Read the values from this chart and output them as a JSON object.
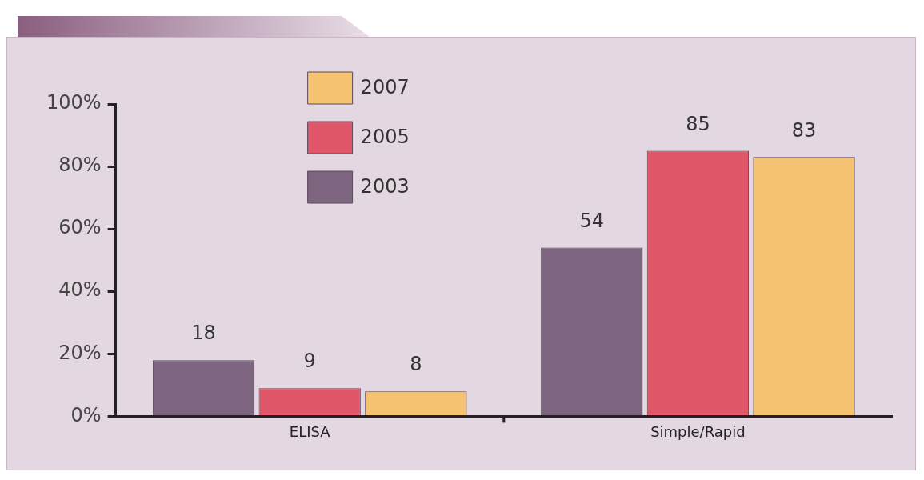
{
  "chart_data": {
    "type": "bar",
    "categories": [
      "ELISA",
      "Simple/Rapid"
    ],
    "series": [
      {
        "name": "2003",
        "color": "#7d6580",
        "values": [
          18,
          54
        ]
      },
      {
        "name": "2005",
        "color": "#e0576a",
        "values": [
          9,
          85
        ]
      },
      {
        "name": "2007",
        "color": "#f5c272",
        "values": [
          8,
          83
        ]
      }
    ],
    "ylim": [
      0,
      100
    ],
    "yticks": [
      {
        "value": 0,
        "label": "0%"
      },
      {
        "value": 20,
        "label": "20%"
      },
      {
        "value": 40,
        "label": "40%"
      },
      {
        "value": 60,
        "label": "60%"
      },
      {
        "value": 80,
        "label": "80%"
      },
      {
        "value": 100,
        "label": "100%"
      }
    ],
    "grid": false,
    "legend": "top left",
    "data_labels": true
  }
}
